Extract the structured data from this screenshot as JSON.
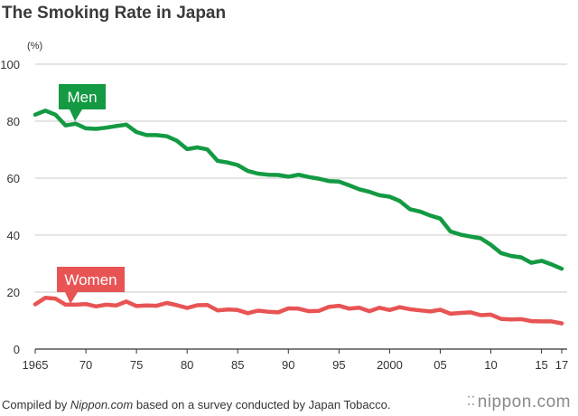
{
  "title": "The Smoking Rate in Japan",
  "footer": {
    "prefix": "Compiled by ",
    "source": "Nippon.com",
    "suffix": " based on a survey conducted by Japan Tobacco."
  },
  "brand": {
    "dots": "⁚⁚",
    "name": "nippon",
    "tld": ".com"
  },
  "chart_data": {
    "type": "line",
    "unit_label": "(%)",
    "ylim": [
      0,
      100
    ],
    "yticks": [
      0,
      20,
      40,
      60,
      80,
      100
    ],
    "xlim": [
      1965,
      2017
    ],
    "xticks": [
      {
        "value": 1965,
        "label": "1965"
      },
      {
        "value": 1970,
        "label": "70"
      },
      {
        "value": 1975,
        "label": "75"
      },
      {
        "value": 1980,
        "label": "80"
      },
      {
        "value": 1985,
        "label": "85"
      },
      {
        "value": 1990,
        "label": "90"
      },
      {
        "value": 1995,
        "label": "95"
      },
      {
        "value": 2000,
        "label": "2000"
      },
      {
        "value": 2005,
        "label": "05"
      },
      {
        "value": 2010,
        "label": "10"
      },
      {
        "value": 2015,
        "label": "15"
      },
      {
        "value": 2017,
        "label": "17"
      }
    ],
    "grid": true,
    "x": [
      1965,
      1966,
      1967,
      1968,
      1969,
      1970,
      1971,
      1972,
      1973,
      1974,
      1975,
      1976,
      1977,
      1978,
      1979,
      1980,
      1981,
      1982,
      1983,
      1984,
      1985,
      1986,
      1987,
      1988,
      1989,
      1990,
      1991,
      1992,
      1993,
      1994,
      1995,
      1996,
      1997,
      1998,
      1999,
      2000,
      2001,
      2002,
      2003,
      2004,
      2005,
      2006,
      2007,
      2008,
      2009,
      2010,
      2011,
      2012,
      2013,
      2014,
      2015,
      2016,
      2017
    ],
    "series": [
      {
        "name": "Men",
        "color": "#139a43",
        "label_color": "#139a43",
        "values": [
          82.3,
          83.7,
          82.3,
          78.5,
          79.1,
          77.5,
          77.3,
          77.7,
          78.3,
          78.8,
          76.2,
          75.1,
          75.1,
          74.7,
          73.1,
          70.2,
          70.8,
          70.1,
          66.1,
          65.5,
          64.6,
          62.5,
          61.6,
          61.2,
          61.1,
          60.5,
          61.2,
          60.4,
          59.8,
          59.0,
          58.8,
          57.5,
          56.1,
          55.2,
          54.0,
          53.5,
          52.0,
          49.1,
          48.3,
          46.9,
          45.8,
          41.3,
          40.2,
          39.5,
          38.9,
          36.6,
          33.7,
          32.7,
          32.2,
          30.3,
          31.0,
          29.7,
          28.2
        ]
      },
      {
        "name": "Women",
        "color": "#e85454",
        "label_color": "#e85454",
        "values": [
          15.7,
          18.0,
          17.7,
          15.6,
          15.6,
          15.8,
          15.0,
          15.6,
          15.3,
          16.7,
          15.1,
          15.3,
          15.2,
          16.2,
          15.4,
          14.4,
          15.4,
          15.5,
          13.6,
          13.9,
          13.7,
          12.6,
          13.5,
          13.1,
          12.9,
          14.3,
          14.2,
          13.3,
          13.4,
          14.8,
          15.2,
          14.2,
          14.5,
          13.3,
          14.5,
          13.7,
          14.7,
          14.0,
          13.6,
          13.2,
          13.8,
          12.4,
          12.7,
          12.9,
          11.9,
          12.1,
          10.6,
          10.4,
          10.5,
          9.8,
          9.7,
          9.7,
          9.0
        ]
      }
    ]
  }
}
